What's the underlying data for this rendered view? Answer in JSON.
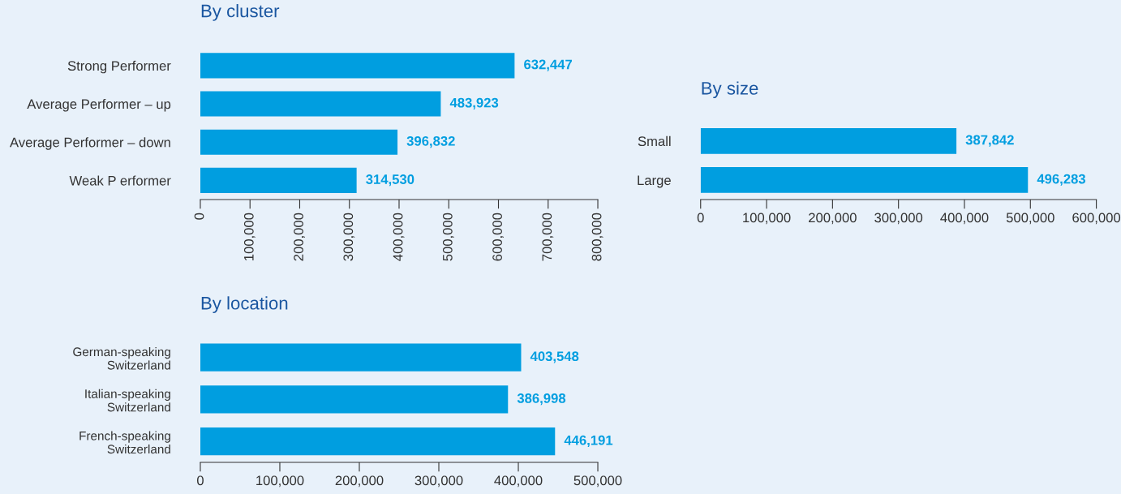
{
  "chart_data": [
    {
      "type": "bar",
      "orientation": "horizontal",
      "title": "By cluster",
      "categories": [
        "Strong Performer",
        "Average Performer – up",
        "Average Performer – down",
        "Weak P erformer"
      ],
      "values": [
        632447,
        483923,
        396832,
        314530
      ],
      "value_labels": [
        "632,447",
        "483,923",
        "396,832",
        "314,530"
      ],
      "color": "#009ee0",
      "xlim": [
        0,
        800000
      ],
      "xticks": [
        0,
        {
          "value": 100000,
          "label": "100,000"
        },
        {
          "value": 200000,
          "label": "200,000"
        },
        {
          "value": 300000,
          "label": "300,000"
        },
        {
          "value": 400000,
          "label": "400,000"
        },
        {
          "value": 500000,
          "label": "500,000"
        },
        {
          "value": 600000,
          "label": "600,000"
        },
        {
          "value": 700000,
          "label": "700,000"
        },
        {
          "value": 800000,
          "label": "800,000"
        }
      ],
      "grid": false,
      "legend": false
    },
    {
      "type": "bar",
      "orientation": "horizontal",
      "title": "By size",
      "categories": [
        "Small",
        "Large"
      ],
      "values": [
        387842,
        496283
      ],
      "value_labels": [
        "387,842",
        "496,283"
      ],
      "color": "#009ee0",
      "xlim": [
        0,
        600000
      ],
      "xticks": [
        0,
        {
          "value": 100000,
          "label": "100,000"
        },
        {
          "value": 200000,
          "label": "200,000"
        },
        {
          "value": 300000,
          "label": "300,000"
        },
        {
          "value": 400000,
          "label": "400,000"
        },
        {
          "value": 500000,
          "label": "500,000"
        },
        {
          "value": 600000,
          "label": "600,000"
        }
      ],
      "grid": false,
      "legend": false
    },
    {
      "type": "bar",
      "orientation": "horizontal",
      "title": "By location",
      "categories": [
        "German-speaking\nSwitzerland",
        "Italian-speaking\nSwitzerland",
        "French-speaking\nSwitzerland"
      ],
      "values": [
        403548,
        386998,
        446191
      ],
      "value_labels": [
        "403,548",
        "386,998",
        "446,191"
      ],
      "color": "#009ee0",
      "xlim": [
        0,
        500000
      ],
      "xticks": [
        0,
        {
          "value": 100000,
          "label": "100,000"
        },
        {
          "value": 200000,
          "label": "200,000"
        },
        {
          "value": 300000,
          "label": "300,000"
        },
        {
          "value": 400000,
          "label": "400,000"
        },
        {
          "value": 500000,
          "label": "500,000"
        }
      ],
      "grid": false,
      "legend": false
    }
  ]
}
